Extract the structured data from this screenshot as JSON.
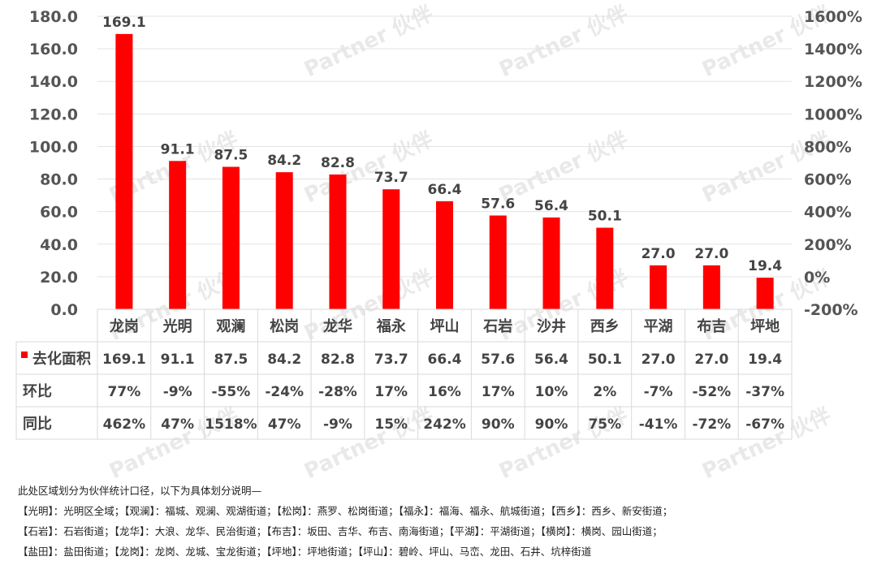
{
  "watermark": "Partner 伙伴",
  "chart_data": {
    "type": "bar",
    "categories": [
      "龙岗",
      "光明",
      "观澜",
      "松岗",
      "龙华",
      "福永",
      "坪山",
      "石岩",
      "沙井",
      "西乡",
      "平湖",
      "布吉",
      "坪地"
    ],
    "series": [
      {
        "name": "去化面积",
        "color": "#ff0000",
        "values": [
          169.1,
          91.1,
          87.5,
          84.2,
          82.8,
          73.7,
          66.4,
          57.6,
          56.4,
          50.1,
          27.0,
          27.0,
          19.4
        ],
        "labels": [
          "169.1",
          "91.1",
          "87.5",
          "84.2",
          "82.8",
          "73.7",
          "66.4",
          "57.6",
          "56.4",
          "50.1",
          "27.0",
          "27.0",
          "19.4"
        ]
      }
    ],
    "y_left": {
      "min": 0,
      "max": 180,
      "ticks": [
        "0.0",
        "20.0",
        "40.0",
        "60.0",
        "80.0",
        "100.0",
        "120.0",
        "140.0",
        "160.0",
        "180.0"
      ]
    },
    "y_right": {
      "min": -200,
      "max": 1600,
      "ticks": [
        "-200%",
        "0%",
        "200%",
        "400%",
        "600%",
        "800%",
        "1000%",
        "1200%",
        "1400%",
        "1600%"
      ]
    },
    "grid": true,
    "table": {
      "rows": [
        {
          "label": "去化面积",
          "legend_color": "#ff0000",
          "values": [
            "169.1",
            "91.1",
            "87.5",
            "84.2",
            "82.8",
            "73.7",
            "66.4",
            "57.6",
            "56.4",
            "50.1",
            "27.0",
            "27.0",
            "19.4"
          ]
        },
        {
          "label": "环比",
          "values": [
            "77%",
            "-9%",
            "-55%",
            "-24%",
            "-28%",
            "17%",
            "16%",
            "17%",
            "10%",
            "2%",
            "-7%",
            "-52%",
            "-37%"
          ]
        },
        {
          "label": "同比",
          "values": [
            "462%",
            "47%",
            "1518%",
            "47%",
            "-9%",
            "15%",
            "242%",
            "90%",
            "90%",
            "75%",
            "-41%",
            "-72%",
            "-67%"
          ]
        }
      ]
    }
  },
  "notes": [
    "此处区域划分为伙伴统计口径，以下为具体划分说明—",
    "【光明】：光明区全域；【观澜】：福城、观澜、观湖街道；【松岗】：燕罗、松岗街道；【福永】：福海、福永、航城街道；【西乡】：西乡、新安街道；",
    "【石岩】：石岩街道；【龙华】：大浪、龙华、民治街道；【布吉】：坂田、吉华、布吉、南海街道；【平湖】：平湖街道；【横岗】：横岗、园山街道；",
    "【盐田】：盐田街道；【龙岗】：龙岗、龙城、宝龙街道；【坪地】：坪地街道；【坪山】：碧岭、坪山、马峦、龙田、石井、坑梓街道"
  ]
}
